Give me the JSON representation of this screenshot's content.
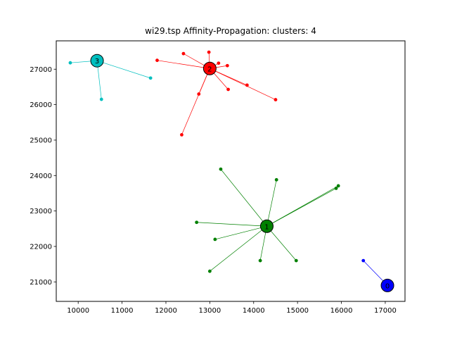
{
  "chart_data": {
    "type": "scatter",
    "title": "wi29.tsp Affinity-Propagation: clusters: 4",
    "xlabel": "",
    "ylabel": "",
    "xlim": [
      9500,
      17450
    ],
    "ylim": [
      20450,
      27800
    ],
    "xticks": [
      10000,
      11000,
      12000,
      13000,
      14000,
      15000,
      16000,
      17000
    ],
    "yticks": [
      21000,
      22000,
      23000,
      24000,
      25000,
      26000,
      27000
    ],
    "grid": false,
    "clusters": [
      {
        "label": "0",
        "color": "#0000ff",
        "center": [
          17050,
          20900
        ],
        "points": [
          [
            16500,
            21600
          ]
        ]
      },
      {
        "label": "1",
        "color": "#008000",
        "center": [
          14300,
          22570
        ],
        "points": [
          [
            13250,
            24180
          ],
          [
            14520,
            23880
          ],
          [
            15930,
            23710
          ],
          [
            15880,
            23640
          ],
          [
            12700,
            22680
          ],
          [
            13120,
            22200
          ],
          [
            14150,
            21600
          ],
          [
            14970,
            21600
          ],
          [
            13000,
            21300
          ]
        ]
      },
      {
        "label": "2",
        "color": "#ff0000",
        "center": [
          13000,
          27020
        ],
        "points": [
          [
            11800,
            27250
          ],
          [
            12400,
            27440
          ],
          [
            12980,
            27480
          ],
          [
            13200,
            27170
          ],
          [
            13400,
            27100
          ],
          [
            13850,
            26550
          ],
          [
            13420,
            26430
          ],
          [
            14500,
            26140
          ],
          [
            12750,
            26300
          ],
          [
            12360,
            25150
          ]
        ]
      },
      {
        "label": "3",
        "color": "#00bfbf",
        "center": [
          10430,
          27240
        ],
        "points": [
          [
            9820,
            27180
          ],
          [
            11650,
            26750
          ],
          [
            10530,
            26150
          ]
        ]
      }
    ]
  }
}
